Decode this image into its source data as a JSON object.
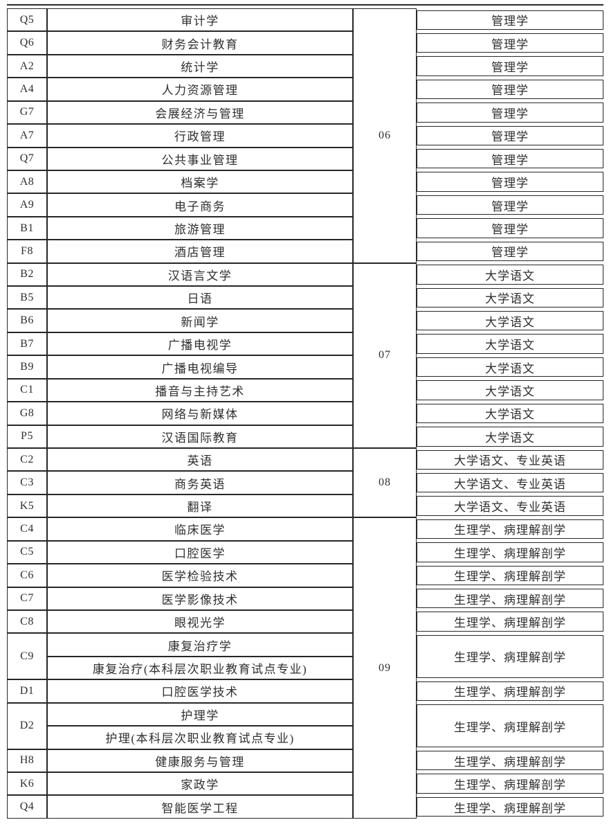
{
  "table": {
    "colors": {
      "border": "#262626",
      "text": "#2e2e2e",
      "background": "#ffffff"
    },
    "groups": [
      {
        "group_no": "06",
        "rows": [
          {
            "code": "Q5",
            "majors": [
              "审计学"
            ],
            "subject": "管理学"
          },
          {
            "code": "Q6",
            "majors": [
              "财务会计教育"
            ],
            "subject": "管理学"
          },
          {
            "code": "A2",
            "majors": [
              "统计学"
            ],
            "subject": "管理学"
          },
          {
            "code": "A4",
            "majors": [
              "人力资源管理"
            ],
            "subject": "管理学"
          },
          {
            "code": "G7",
            "majors": [
              "会展经济与管理"
            ],
            "subject": "管理学"
          },
          {
            "code": "A7",
            "majors": [
              "行政管理"
            ],
            "subject": "管理学"
          },
          {
            "code": "Q7",
            "majors": [
              "公共事业管理"
            ],
            "subject": "管理学"
          },
          {
            "code": "A8",
            "majors": [
              "档案学"
            ],
            "subject": "管理学"
          },
          {
            "code": "A9",
            "majors": [
              "电子商务"
            ],
            "subject": "管理学"
          },
          {
            "code": "B1",
            "majors": [
              "旅游管理"
            ],
            "subject": "管理学"
          },
          {
            "code": "F8",
            "majors": [
              "酒店管理"
            ],
            "subject": "管理学"
          }
        ]
      },
      {
        "group_no": "07",
        "rows": [
          {
            "code": "B2",
            "majors": [
              "汉语言文学"
            ],
            "subject": "大学语文"
          },
          {
            "code": "B5",
            "majors": [
              "日语"
            ],
            "subject": "大学语文"
          },
          {
            "code": "B6",
            "majors": [
              "新闻学"
            ],
            "subject": "大学语文"
          },
          {
            "code": "B7",
            "majors": [
              "广播电视学"
            ],
            "subject": "大学语文"
          },
          {
            "code": "B9",
            "majors": [
              "广播电视编导"
            ],
            "subject": "大学语文"
          },
          {
            "code": "C1",
            "majors": [
              "播音与主持艺术"
            ],
            "subject": "大学语文"
          },
          {
            "code": "G8",
            "majors": [
              "网络与新媒体"
            ],
            "subject": "大学语文"
          },
          {
            "code": "P5",
            "majors": [
              "汉语国际教育"
            ],
            "subject": "大学语文"
          }
        ]
      },
      {
        "group_no": "08",
        "rows": [
          {
            "code": "C2",
            "majors": [
              "英语"
            ],
            "subject": "大学语文、专业英语"
          },
          {
            "code": "C3",
            "majors": [
              "商务英语"
            ],
            "subject": "大学语文、专业英语"
          },
          {
            "code": "K5",
            "majors": [
              "翻译"
            ],
            "subject": "大学语文、专业英语"
          }
        ]
      },
      {
        "group_no": "09",
        "rows": [
          {
            "code": "C4",
            "majors": [
              "临床医学"
            ],
            "subject": "生理学、病理解剖学"
          },
          {
            "code": "C5",
            "majors": [
              "口腔医学"
            ],
            "subject": "生理学、病理解剖学"
          },
          {
            "code": "C6",
            "majors": [
              "医学检验技术"
            ],
            "subject": "生理学、病理解剖学"
          },
          {
            "code": "C7",
            "majors": [
              "医学影像技术"
            ],
            "subject": "生理学、病理解剖学"
          },
          {
            "code": "C8",
            "majors": [
              "眼视光学"
            ],
            "subject": "生理学、病理解剖学"
          },
          {
            "code": "C9",
            "majors": [
              "康复治疗学",
              "康复治疗(本科层次职业教育试点专业)"
            ],
            "subject": "生理学、病理解剖学"
          },
          {
            "code": "D1",
            "majors": [
              "口腔医学技术"
            ],
            "subject": "生理学、病理解剖学"
          },
          {
            "code": "D2",
            "majors": [
              "护理学",
              "护理(本科层次职业教育试点专业)"
            ],
            "subject": "生理学、病理解剖学"
          },
          {
            "code": "H8",
            "majors": [
              "健康服务与管理"
            ],
            "subject": "生理学、病理解剖学"
          },
          {
            "code": "K6",
            "majors": [
              "家政学"
            ],
            "subject": "生理学、病理解剖学"
          },
          {
            "code": "Q4",
            "majors": [
              "智能医学工程"
            ],
            "subject": "生理学、病理解剖学"
          }
        ]
      }
    ]
  }
}
